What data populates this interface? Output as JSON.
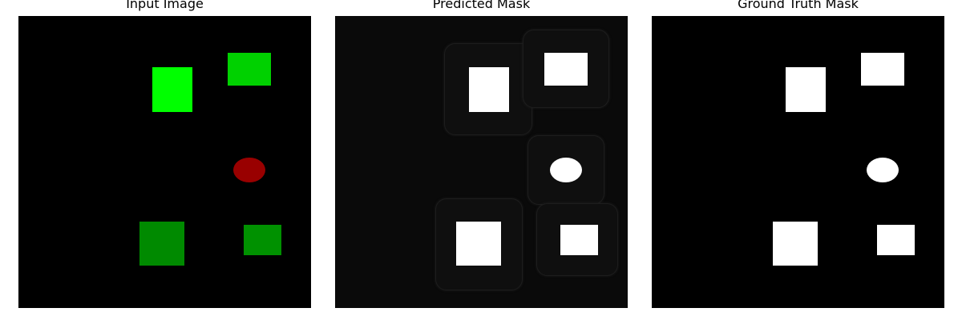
{
  "panels": [
    {
      "id": "input",
      "title": "Input Image"
    },
    {
      "id": "pred",
      "title": "Predicted Mask"
    },
    {
      "id": "gt",
      "title": "Ground Truth Mask"
    }
  ],
  "colors": {
    "background": "#000000",
    "bright_green": "#00ff00",
    "mid_green": "#00d100",
    "dark_green": "#008a00",
    "green4": "#009100",
    "red": "#990000",
    "mask_white": "#ffffff"
  }
}
